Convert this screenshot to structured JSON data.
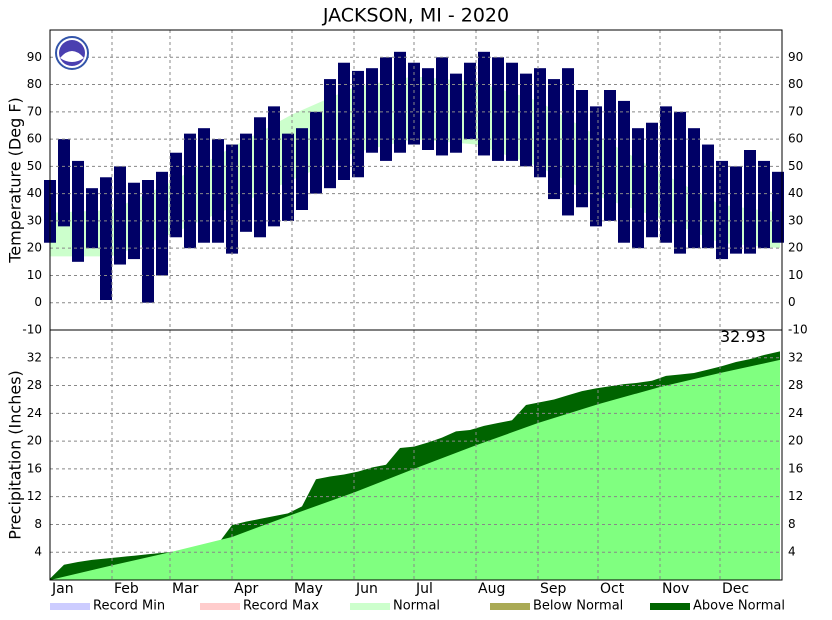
{
  "title": "JACKSON, MI - 2020",
  "legend": [
    {
      "name": "Record Min",
      "color": "#ccccff"
    },
    {
      "name": "Record Max",
      "color": "#ffcccc"
    },
    {
      "name": "Normal",
      "color": "#ccffcc"
    },
    {
      "name": "Below Normal",
      "color": "#aaaa55"
    },
    {
      "name": "Above Normal",
      "color": "#006400"
    }
  ],
  "chart_data": [
    {
      "type": "range",
      "ylabel": "Temperature (Deg F)",
      "ylim": [
        -10,
        100
      ],
      "yticks": [
        -10,
        0,
        10,
        20,
        30,
        40,
        50,
        60,
        70,
        80,
        90
      ],
      "grid": true,
      "xlim": [
        1,
        367
      ],
      "normal": {
        "color": "#ccffcc",
        "x": [
          1,
          32,
          61,
          92,
          122,
          153,
          183,
          214,
          245,
          275,
          306,
          336,
          366
        ],
        "high": [
          33,
          34,
          44,
          57,
          69,
          79,
          83,
          81,
          74,
          61,
          48,
          36,
          33
        ],
        "low": [
          17,
          17,
          25,
          35,
          45,
          55,
          60,
          58,
          50,
          39,
          31,
          22,
          20
        ]
      },
      "observed": {
        "color": "#000066",
        "x": [
          1,
          8,
          15,
          22,
          29,
          36,
          43,
          50,
          57,
          64,
          71,
          78,
          85,
          92,
          99,
          106,
          113,
          120,
          127,
          134,
          141,
          148,
          155,
          162,
          169,
          176,
          183,
          190,
          197,
          204,
          211,
          218,
          225,
          232,
          239,
          246,
          253,
          260,
          267,
          274,
          281,
          288,
          295,
          302,
          309,
          316,
          323,
          330,
          337,
          344,
          351,
          358,
          365
        ],
        "high": [
          45,
          60,
          52,
          42,
          46,
          50,
          44,
          45,
          48,
          55,
          62,
          64,
          60,
          58,
          62,
          68,
          72,
          62,
          64,
          70,
          82,
          88,
          85,
          86,
          90,
          92,
          88,
          86,
          90,
          84,
          88,
          92,
          90,
          88,
          84,
          86,
          82,
          86,
          78,
          72,
          78,
          74,
          64,
          66,
          72,
          70,
          64,
          58,
          52,
          50,
          56,
          52,
          48
        ],
        "low": [
          22,
          28,
          15,
          20,
          1,
          14,
          16,
          0,
          10,
          24,
          20,
          22,
          22,
          18,
          26,
          24,
          28,
          30,
          34,
          40,
          42,
          45,
          46,
          55,
          52,
          55,
          58,
          56,
          54,
          55,
          60,
          54,
          52,
          52,
          50,
          46,
          38,
          32,
          35,
          28,
          30,
          22,
          20,
          24,
          22,
          18,
          20,
          20,
          16,
          18,
          18,
          20,
          22
        ]
      }
    },
    {
      "type": "area",
      "ylabel": "Precipitation (Inches)",
      "ylim": [
        0,
        36
      ],
      "yticks": [
        4,
        8,
        12,
        16,
        20,
        24,
        28,
        32
      ],
      "grid": true,
      "xlim": [
        1,
        367
      ],
      "xticks": [
        {
          "value": 1,
          "label": "Jan"
        },
        {
          "value": 32,
          "label": "Feb"
        },
        {
          "value": 61,
          "label": "Mar"
        },
        {
          "value": 92,
          "label": "Apr"
        },
        {
          "value": 122,
          "label": "May"
        },
        {
          "value": 153,
          "label": "Jun"
        },
        {
          "value": 183,
          "label": "Jul"
        },
        {
          "value": 214,
          "label": "Aug"
        },
        {
          "value": 245,
          "label": "Sep"
        },
        {
          "value": 275,
          "label": "Oct"
        },
        {
          "value": 306,
          "label": "Nov"
        },
        {
          "value": 336,
          "label": "Dec"
        }
      ],
      "series": [
        {
          "color": "#006400",
          "x": [
            1,
            8,
            15,
            22,
            29,
            36,
            43,
            50,
            57,
            64,
            71,
            78,
            85,
            92,
            99,
            106,
            113,
            120,
            127,
            134,
            141,
            148,
            155,
            162,
            169,
            176,
            183,
            190,
            197,
            204,
            211,
            218,
            225,
            232,
            239,
            246,
            253,
            260,
            267,
            274,
            281,
            288,
            295,
            302,
            309,
            316,
            323,
            330,
            337,
            344,
            351,
            358,
            366
          ],
          "values": [
            0.2,
            2.2,
            2.6,
            2.9,
            3.1,
            3.3,
            3.5,
            3.7,
            3.9,
            4.1,
            4.3,
            4.6,
            5.2,
            7.9,
            8.4,
            8.8,
            9.2,
            9.6,
            10.6,
            14.5,
            14.9,
            15.2,
            15.6,
            16.2,
            16.6,
            19.0,
            19.2,
            19.8,
            20.5,
            21.4,
            21.6,
            22.2,
            22.6,
            23.0,
            25.2,
            25.6,
            26.0,
            26.6,
            27.2,
            27.6,
            27.9,
            28.2,
            28.4,
            28.7,
            29.4,
            29.6,
            29.8,
            30.3,
            30.8,
            31.4,
            31.8,
            32.4,
            32.93
          ]
        },
        {
          "color": "#80ff80",
          "x": [
            1,
            32,
            61,
            92,
            122,
            153,
            183,
            214,
            245,
            275,
            306,
            336,
            366
          ],
          "values": [
            0,
            2.1,
            4.0,
            6.2,
            9.4,
            12.6,
            16.0,
            19.4,
            22.6,
            25.3,
            27.8,
            29.8,
            31.7
          ]
        }
      ]
    }
  ]
}
